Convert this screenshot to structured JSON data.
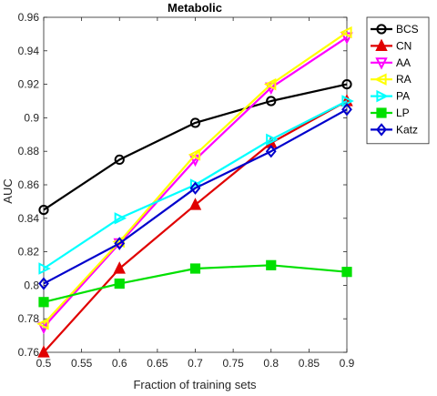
{
  "chart_data": {
    "type": "line",
    "title": "Metabolic",
    "xlabel": "Fraction of training sets",
    "ylabel": "AUC",
    "x": [
      0.5,
      0.6,
      0.7,
      0.8,
      0.9
    ],
    "xlim": [
      0.5,
      0.9
    ],
    "ylim": [
      0.76,
      0.96
    ],
    "xticks": [
      "0.5",
      "0.55",
      "0.6",
      "0.65",
      "0.7",
      "0.75",
      "0.8",
      "0.85",
      "0.9"
    ],
    "yticks": [
      "0.76",
      "0.78",
      "0.8",
      "0.82",
      "0.84",
      "0.86",
      "0.88",
      "0.9",
      "0.92",
      "0.94",
      "0.96"
    ],
    "grid": false,
    "legend_position": "top-right",
    "series": [
      {
        "name": "BCS",
        "values": [
          0.845,
          0.875,
          0.897,
          0.91,
          0.92
        ],
        "color": "#000000",
        "marker": "circle"
      },
      {
        "name": "CN",
        "values": [
          0.76,
          0.81,
          0.848,
          0.885,
          0.91
        ],
        "color": "#e00000",
        "marker": "triangle-up"
      },
      {
        "name": "AA",
        "values": [
          0.775,
          0.825,
          0.875,
          0.918,
          0.948
        ],
        "color": "#ff00ff",
        "marker": "triangle-down"
      },
      {
        "name": "RA",
        "values": [
          0.777,
          0.826,
          0.878,
          0.92,
          0.951
        ],
        "color": "#ffff00",
        "marker": "triangle-left"
      },
      {
        "name": "PA",
        "values": [
          0.81,
          0.84,
          0.86,
          0.887,
          0.91
        ],
        "color": "#00ffff",
        "marker": "triangle-right"
      },
      {
        "name": "LP",
        "values": [
          0.79,
          0.801,
          0.81,
          0.812,
          0.808
        ],
        "color": "#00e000",
        "marker": "square"
      },
      {
        "name": "Katz",
        "values": [
          0.801,
          0.825,
          0.858,
          0.88,
          0.905
        ],
        "color": "#0000cc",
        "marker": "diamond"
      }
    ]
  }
}
